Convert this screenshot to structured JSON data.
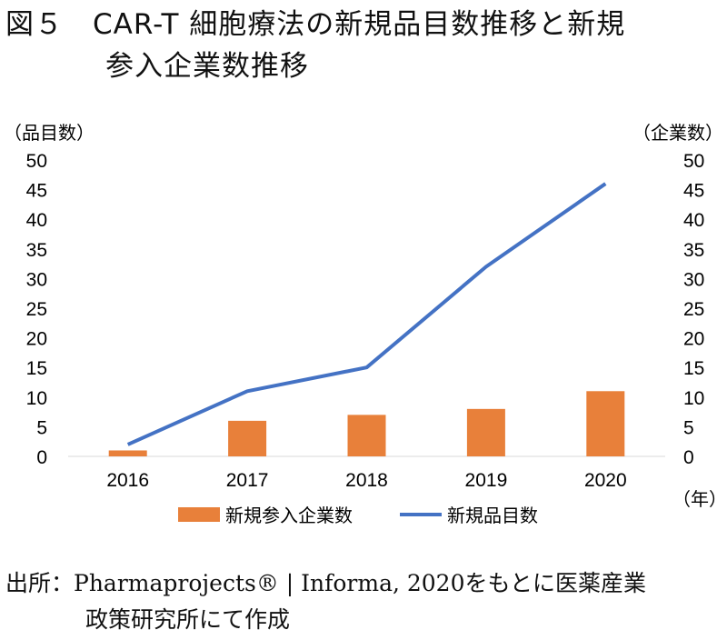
{
  "title": {
    "line1": "図５　CAR-T 細胞療法の新規品目数推移と新規",
    "line2": "参入企業数推移"
  },
  "source": {
    "line1": "出所：Pharmaprojects® | Informa, 2020をもとに医薬産業",
    "line2": "政策研究所にて作成"
  },
  "chart_data": {
    "type": "bar+line",
    "categories": [
      "2016",
      "2017",
      "2018",
      "2019",
      "2020"
    ],
    "xlabel": "（年）",
    "ylabel_left": "（品目数）",
    "ylabel_right": "（企業数）",
    "ylim": [
      0,
      50
    ],
    "yticks": [
      0,
      5,
      10,
      15,
      20,
      25,
      30,
      35,
      40,
      45,
      50
    ],
    "grid": false,
    "legend_placement": "bottom",
    "series": [
      {
        "name": "新規参入企業数",
        "type": "bar",
        "axis": "right",
        "color": "#E8803A",
        "values": [
          1,
          6,
          7,
          8,
          11
        ]
      },
      {
        "name": "新規品目数",
        "type": "line",
        "axis": "left",
        "color": "#4472C4",
        "values": [
          2,
          11,
          15,
          32,
          46
        ]
      }
    ]
  }
}
